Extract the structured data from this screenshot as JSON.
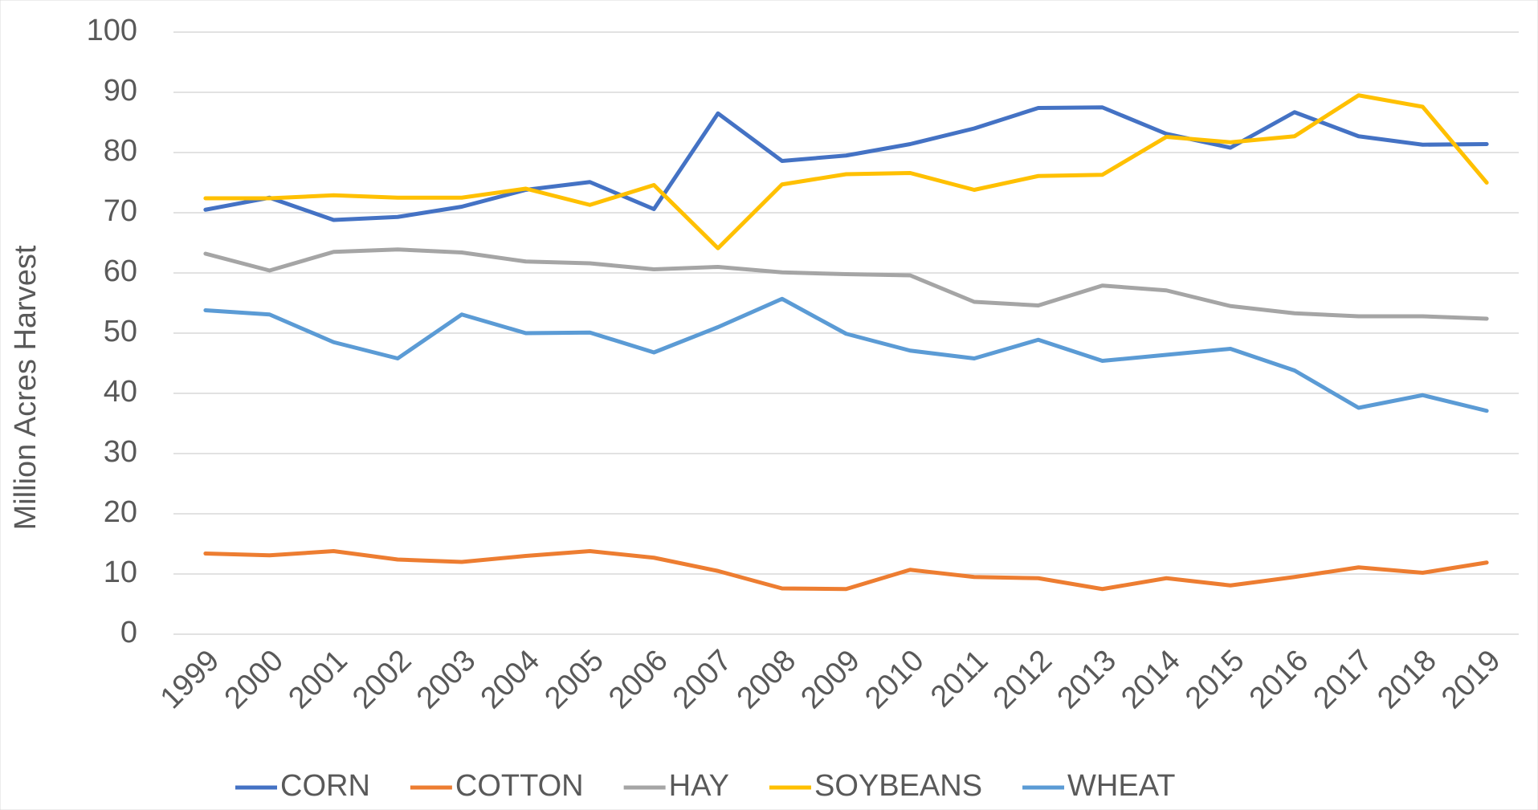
{
  "chart_data": {
    "type": "line",
    "y_label": "Million Acres Harvest",
    "categories": [
      "1999",
      "2000",
      "2001",
      "2002",
      "2003",
      "2004",
      "2005",
      "2006",
      "2007",
      "2008",
      "2009",
      "2010",
      "2011",
      "2012",
      "2013",
      "2014",
      "2015",
      "2016",
      "2017",
      "2018",
      "2019"
    ],
    "series": [
      {
        "name": "CORN",
        "color": "#4472c4",
        "values": [
          70.5,
          72.5,
          68.8,
          69.3,
          71,
          73.8,
          75.1,
          70.6,
          86.5,
          78.6,
          79.5,
          81.4,
          84,
          87.4,
          87.5,
          83.1,
          80.8,
          86.7,
          82.7,
          81.3,
          81.4
        ]
      },
      {
        "name": "COTTON",
        "color": "#ed7d31",
        "values": [
          13.4,
          13.1,
          13.8,
          12.4,
          12,
          13,
          13.8,
          12.7,
          10.5,
          7.6,
          7.5,
          10.7,
          9.5,
          9.3,
          7.5,
          9.3,
          8.1,
          9.5,
          11.1,
          10.2,
          11.9
        ]
      },
      {
        "name": "HAY",
        "color": "#a5a5a5",
        "values": [
          63.2,
          60.4,
          63.5,
          63.9,
          63.4,
          61.9,
          61.6,
          60.6,
          61,
          60.1,
          59.8,
          59.6,
          55.2,
          54.6,
          57.9,
          57.1,
          54.5,
          53.3,
          52.8,
          52.8,
          52.4
        ]
      },
      {
        "name": "SOYBEANS",
        "color": "#ffc000",
        "values": [
          72.4,
          72.4,
          72.9,
          72.5,
          72.5,
          74,
          71.3,
          74.6,
          64.1,
          74.7,
          76.4,
          76.6,
          73.8,
          76.1,
          76.3,
          82.6,
          81.7,
          82.7,
          89.5,
          87.6,
          75
        ]
      },
      {
        "name": "WHEAT",
        "color": "#5b9bd5",
        "values": [
          53.8,
          53.1,
          48.5,
          45.8,
          53.1,
          50,
          50.1,
          46.8,
          51,
          55.7,
          49.9,
          47.1,
          45.8,
          48.9,
          45.4,
          46.4,
          47.4,
          43.8,
          37.6,
          39.7,
          37.1
        ]
      }
    ],
    "ylim": [
      0,
      100
    ],
    "yticks": [
      0,
      10,
      20,
      30,
      40,
      50,
      60,
      70,
      80,
      90,
      100
    ],
    "grid": true,
    "legend": "bottom"
  }
}
